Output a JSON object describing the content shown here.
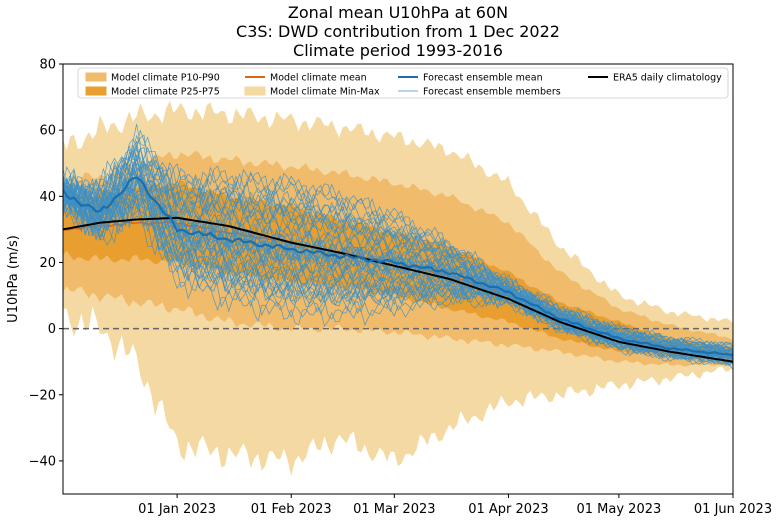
{
  "chart_data": {
    "type": "line",
    "title_lines": [
      "Zonal mean U10hPa at 60N",
      "C3S: DWD contribution from 1 Dec 2022",
      "Climate period 1993-2016"
    ],
    "xlabel": "",
    "ylabel": "U10hPa (m/s)",
    "xlim_days": [
      0,
      182
    ],
    "ylim": [
      -50,
      80
    ],
    "yticks": [
      -40,
      -20,
      0,
      20,
      40,
      60,
      80
    ],
    "xticks": [
      {
        "day": 31,
        "label": "01 Jan 2023"
      },
      {
        "day": 62,
        "label": "01 Feb 2023"
      },
      {
        "day": 90,
        "label": "01 Mar 2023"
      },
      {
        "day": 121,
        "label": "01 Apr 2023"
      },
      {
        "day": 151,
        "label": "01 May 2023"
      },
      {
        "day": 182,
        "label": "01 Jun 2023"
      }
    ],
    "zero_line": 0,
    "ensemble_member_count": 50,
    "legend": [
      {
        "key": "p1090",
        "label": "Model climate P10-P90"
      },
      {
        "key": "p2575",
        "label": "Model climate P25-P75"
      },
      {
        "key": "mean",
        "label": "Model climate mean"
      },
      {
        "key": "minmax",
        "label": "Model climate Min-Max"
      },
      {
        "key": "fcmean",
        "label": "Forecast ensemble mean"
      },
      {
        "key": "members",
        "label": "Forecast ensemble members"
      },
      {
        "key": "era5",
        "label": "ERA5 daily climatology"
      }
    ],
    "colors": {
      "minmax": "#f5d9a3",
      "p1090": "#f0bb6a",
      "p2575": "#e89f2f",
      "mean": "#d9651b",
      "fcmean": "#1a6fb0",
      "members": "#3d8fc6",
      "era5": "#000000",
      "zero": "#666666"
    },
    "series": {
      "days": [
        0,
        10,
        20,
        31,
        45,
        62,
        75,
        90,
        105,
        121,
        135,
        151,
        165,
        182
      ],
      "minmax_upper": [
        55,
        60,
        64,
        66,
        65,
        63,
        61,
        58,
        54,
        44,
        25,
        10,
        5,
        2
      ],
      "minmax_lower": [
        4,
        0,
        -10,
        -35,
        -38,
        -40,
        -33,
        -40,
        -30,
        -22,
        -20,
        -17,
        -15,
        -12
      ],
      "p1090_upper": [
        45,
        46,
        50,
        53,
        51,
        49,
        47,
        44,
        40,
        32,
        17,
        6,
        1,
        -3
      ],
      "p1090_lower": [
        12,
        10,
        8,
        6,
        2,
        0,
        0,
        -1,
        -3,
        -5,
        -7,
        -10,
        -11,
        -11
      ],
      "p2575_upper": [
        40,
        41,
        43,
        44,
        40,
        37,
        33,
        29,
        25,
        17,
        8,
        2,
        -3,
        -6
      ],
      "p2575_lower": [
        22,
        21,
        21,
        20,
        17,
        14,
        13,
        10,
        6,
        2,
        -3,
        -7,
        -8,
        -9
      ],
      "climate_mean": [
        30,
        31,
        32,
        32,
        29,
        26,
        23,
        20,
        16,
        10,
        3,
        -3,
        -6,
        -9
      ],
      "era5": [
        30,
        32,
        33,
        33.5,
        31,
        26,
        23,
        19,
        15,
        9,
        2,
        -4,
        -7,
        -10
      ],
      "forecast_mean": [
        41,
        35,
        46,
        30,
        27,
        24,
        22,
        20,
        17,
        11,
        3,
        -3,
        -6,
        -8
      ]
    }
  }
}
